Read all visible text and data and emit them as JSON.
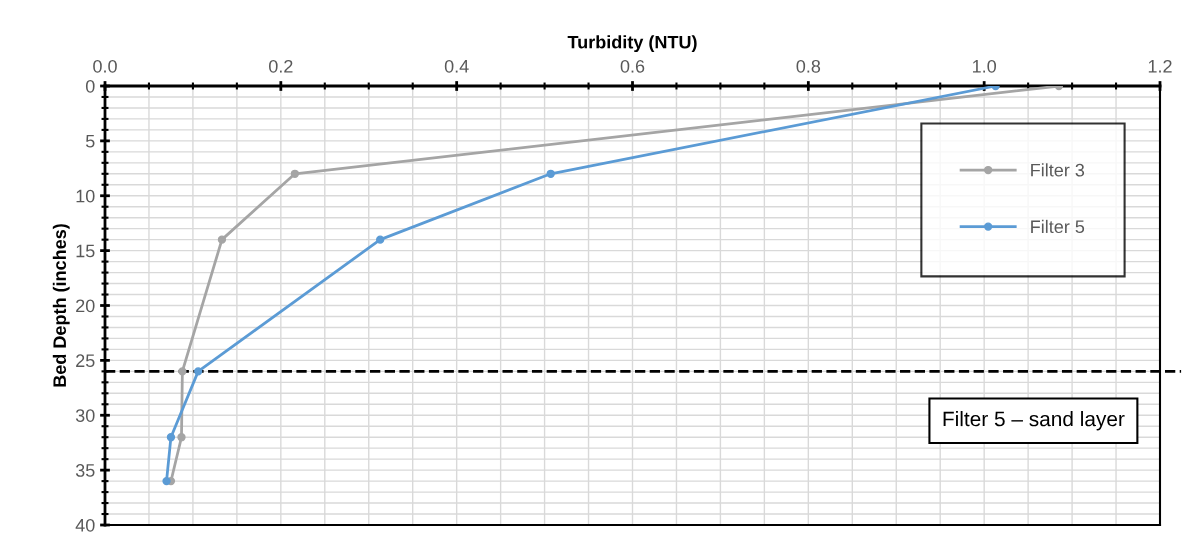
{
  "chart_data": {
    "type": "line",
    "xlabel": "Turbidity (NTU)",
    "ylabel": "Bed Depth (inches)",
    "xlim": [
      0,
      1.2
    ],
    "xticks": [
      {
        "value": 0,
        "label": "0.0"
      },
      {
        "value": 0.2,
        "label": "0.2"
      },
      {
        "value": 0.4,
        "label": "0.4"
      },
      {
        "value": 0.6,
        "label": "0.6"
      },
      {
        "value": 0.8,
        "label": "0.8"
      },
      {
        "value": 1.0,
        "label": "1.0"
      },
      {
        "value": 1.2,
        "label": "1.2"
      }
    ],
    "ylim": [
      40,
      0
    ],
    "yticks": [
      0,
      5,
      10,
      15,
      20,
      25,
      30,
      35,
      40
    ],
    "grid": true,
    "legend": "top right",
    "marker": "circle",
    "line_style": "solid",
    "series": [
      {
        "name": "Filter 3",
        "color": "#a5a5a5",
        "x": [
          1.085,
          0.216,
          0.133,
          0.088,
          0.087,
          0.075
        ],
        "values": [
          0,
          8,
          14,
          26,
          32,
          36
        ]
      },
      {
        "name": "Filter 5",
        "color": "#5b9bd5",
        "x": [
          1.013,
          0.507,
          0.313,
          0.106,
          0.075,
          0.07
        ],
        "values": [
          0,
          8,
          14,
          26,
          32,
          36
        ]
      }
    ],
    "ref_lines": [
      {
        "axis": "y",
        "value": 26,
        "label": "Filter 5 – sand layer",
        "color": "#000000",
        "line_style": "dashed"
      }
    ]
  }
}
